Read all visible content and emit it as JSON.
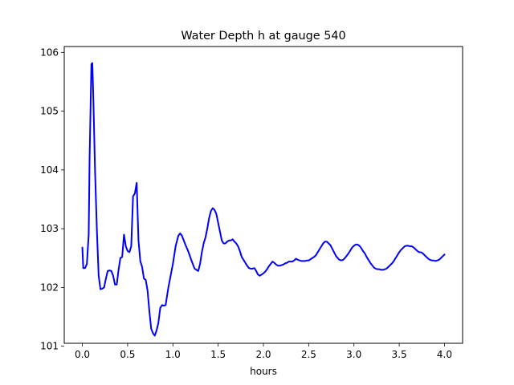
{
  "chart_data": {
    "type": "line",
    "title": "Water Depth h at gauge 540",
    "xlabel": "hours",
    "ylabel": "",
    "xlim": [
      -0.2,
      4.2
    ],
    "ylim": [
      101.05,
      106.1
    ],
    "xticks": [
      {
        "value": 0.0,
        "label": "0.0"
      },
      {
        "value": 0.5,
        "label": "0.5"
      },
      {
        "value": 1.0,
        "label": "1.0"
      },
      {
        "value": 1.5,
        "label": "1.5"
      },
      {
        "value": 2.0,
        "label": "2.0"
      },
      {
        "value": 2.5,
        "label": "2.5"
      },
      {
        "value": 3.0,
        "label": "3.0"
      },
      {
        "value": 3.5,
        "label": "3.5"
      },
      {
        "value": 4.0,
        "label": "4.0"
      }
    ],
    "yticks": [
      {
        "value": 101,
        "label": "101"
      },
      {
        "value": 102,
        "label": "102"
      },
      {
        "value": 103,
        "label": "103"
      },
      {
        "value": 104,
        "label": "104"
      },
      {
        "value": 105,
        "label": "105"
      },
      {
        "value": 106,
        "label": "106"
      }
    ],
    "grid": false,
    "series": [
      {
        "color": "#0000ff",
        "x": [
          0.0,
          0.01,
          0.03,
          0.05,
          0.07,
          0.08,
          0.1,
          0.11,
          0.12,
          0.14,
          0.16,
          0.18,
          0.2,
          0.22,
          0.24,
          0.26,
          0.28,
          0.3,
          0.32,
          0.34,
          0.36,
          0.38,
          0.4,
          0.42,
          0.44,
          0.46,
          0.48,
          0.5,
          0.52,
          0.54,
          0.56,
          0.58,
          0.6,
          0.62,
          0.64,
          0.66,
          0.68,
          0.7,
          0.72,
          0.74,
          0.76,
          0.78,
          0.8,
          0.82,
          0.84,
          0.86,
          0.88,
          0.9,
          0.92,
          0.95,
          1.0,
          1.03,
          1.06,
          1.08,
          1.1,
          1.12,
          1.14,
          1.16,
          1.18,
          1.2,
          1.22,
          1.24,
          1.26,
          1.28,
          1.3,
          1.32,
          1.34,
          1.36,
          1.38,
          1.4,
          1.42,
          1.44,
          1.46,
          1.48,
          1.5,
          1.52,
          1.54,
          1.56,
          1.58,
          1.6,
          1.62,
          1.64,
          1.66,
          1.68,
          1.7,
          1.72,
          1.74,
          1.76,
          1.78,
          1.8,
          1.82,
          1.84,
          1.86,
          1.88,
          1.9,
          1.92,
          1.94,
          1.96,
          1.98,
          2.0,
          2.02,
          2.04,
          2.06,
          2.08,
          2.1,
          2.12,
          2.14,
          2.16,
          2.18,
          2.2,
          2.22,
          2.24,
          2.26,
          2.28,
          2.3,
          2.32,
          2.34,
          2.36,
          2.38,
          2.4,
          2.42,
          2.44,
          2.46,
          2.48,
          2.5,
          2.52,
          2.54,
          2.56,
          2.58,
          2.6,
          2.62,
          2.64,
          2.66,
          2.68,
          2.7,
          2.72,
          2.74,
          2.76,
          2.78,
          2.8,
          2.82,
          2.84,
          2.86,
          2.88,
          2.9,
          2.92,
          2.94,
          2.96,
          2.98,
          3.0,
          3.02,
          3.04,
          3.06,
          3.08,
          3.1,
          3.12,
          3.14,
          3.16,
          3.18,
          3.2,
          3.22,
          3.24,
          3.26,
          3.28,
          3.3,
          3.32,
          3.34,
          3.36,
          3.38,
          3.4,
          3.42,
          3.44,
          3.46,
          3.48,
          3.5,
          3.52,
          3.54,
          3.56,
          3.58,
          3.6,
          3.62,
          3.64,
          3.66,
          3.68,
          3.7,
          3.72,
          3.74,
          3.76,
          3.78,
          3.8,
          3.82,
          3.84,
          3.86,
          3.88,
          3.9,
          3.92,
          3.94,
          3.96,
          3.98,
          4.0
        ],
        "y": [
          102.68,
          102.33,
          102.33,
          102.4,
          102.9,
          104.2,
          105.8,
          105.82,
          105.3,
          104.0,
          103.0,
          102.2,
          101.97,
          101.98,
          102.0,
          102.15,
          102.28,
          102.29,
          102.28,
          102.2,
          102.05,
          102.05,
          102.3,
          102.5,
          102.52,
          102.9,
          102.7,
          102.62,
          102.6,
          102.7,
          103.55,
          103.6,
          103.78,
          102.8,
          102.45,
          102.35,
          102.15,
          102.13,
          101.95,
          101.6,
          101.3,
          101.22,
          101.18,
          101.27,
          101.4,
          101.65,
          101.7,
          101.69,
          101.7,
          102.0,
          102.4,
          102.7,
          102.88,
          102.92,
          102.88,
          102.8,
          102.72,
          102.65,
          102.57,
          102.48,
          102.4,
          102.32,
          102.3,
          102.28,
          102.4,
          102.6,
          102.75,
          102.85,
          103.0,
          103.18,
          103.3,
          103.35,
          103.32,
          103.25,
          103.1,
          102.95,
          102.8,
          102.75,
          102.75,
          102.78,
          102.8,
          102.8,
          102.82,
          102.78,
          102.75,
          102.7,
          102.62,
          102.52,
          102.47,
          102.42,
          102.37,
          102.33,
          102.32,
          102.32,
          102.33,
          102.28,
          102.22,
          102.2,
          102.22,
          102.24,
          102.27,
          102.31,
          102.36,
          102.4,
          102.44,
          102.42,
          102.39,
          102.37,
          102.37,
          102.38,
          102.39,
          102.41,
          102.42,
          102.44,
          102.44,
          102.44,
          102.46,
          102.49,
          102.47,
          102.46,
          102.45,
          102.45,
          102.45,
          102.46,
          102.46,
          102.48,
          102.5,
          102.52,
          102.55,
          102.6,
          102.65,
          102.7,
          102.75,
          102.78,
          102.78,
          102.75,
          102.72,
          102.66,
          102.6,
          102.54,
          102.5,
          102.47,
          102.46,
          102.47,
          102.5,
          102.54,
          102.58,
          102.63,
          102.68,
          102.71,
          102.73,
          102.73,
          102.71,
          102.67,
          102.62,
          102.58,
          102.52,
          102.47,
          102.42,
          102.38,
          102.34,
          102.32,
          102.31,
          102.31,
          102.3,
          102.3,
          102.31,
          102.32,
          102.35,
          102.38,
          102.41,
          102.45,
          102.5,
          102.55,
          102.6,
          102.64,
          102.67,
          102.7,
          102.71,
          102.71,
          102.7,
          102.7,
          102.68,
          102.65,
          102.62,
          102.6,
          102.6,
          102.58,
          102.55,
          102.52,
          102.49,
          102.47,
          102.46,
          102.46,
          102.45,
          102.46,
          102.47,
          102.5,
          102.53,
          102.56
        ]
      }
    ]
  }
}
